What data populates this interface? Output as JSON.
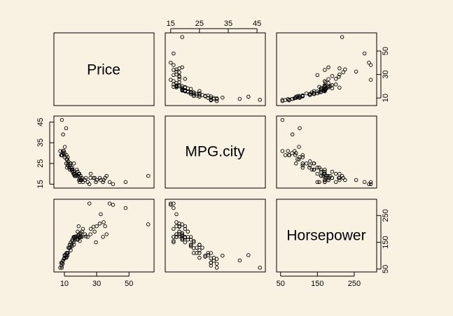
{
  "chart_data": {
    "type": "scatter-matrix",
    "variables": [
      "Price",
      "MPG.city",
      "Horsepower"
    ],
    "axes": {
      "Price": {
        "ticks": [
          10,
          30,
          50
        ],
        "range": [
          6,
          63
        ]
      },
      "MPG.city": {
        "ticks": [
          15,
          25,
          35,
          45
        ],
        "range": [
          14.5,
          46.5
        ]
      },
      "Horsepower": {
        "ticks": [
          50,
          150,
          250
        ],
        "range": [
          50,
          300
        ]
      }
    },
    "grid": false,
    "legend": "none",
    "observations": [
      [
        7.4,
        31,
        55
      ],
      [
        8.0,
        29,
        73
      ],
      [
        8.3,
        29,
        63
      ],
      [
        8.4,
        46,
        55
      ],
      [
        8.6,
        29,
        74
      ],
      [
        9.0,
        31,
        70
      ],
      [
        9.1,
        30,
        81
      ],
      [
        9.2,
        39,
        82
      ],
      [
        10.0,
        30,
        92
      ],
      [
        10.0,
        29,
        90
      ],
      [
        10.1,
        28,
        102
      ],
      [
        10.3,
        33,
        100
      ],
      [
        11.1,
        25,
        92
      ],
      [
        11.1,
        42,
        102
      ],
      [
        11.3,
        29,
        110
      ],
      [
        11.6,
        23,
        110
      ],
      [
        11.8,
        27,
        100
      ],
      [
        12.1,
        28,
        110
      ],
      [
        12.2,
        25,
        110
      ],
      [
        12.5,
        26,
        130
      ],
      [
        13.3,
        22,
        141
      ],
      [
        13.4,
        25,
        140
      ],
      [
        13.5,
        24,
        130
      ],
      [
        13.9,
        25,
        120
      ],
      [
        14.0,
        23,
        150
      ],
      [
        14.4,
        22,
        140
      ],
      [
        14.9,
        23,
        155
      ],
      [
        15.1,
        22,
        160
      ],
      [
        15.6,
        20,
        150
      ],
      [
        15.7,
        21,
        170
      ],
      [
        15.9,
        25,
        141
      ],
      [
        16.3,
        19,
        165
      ],
      [
        16.5,
        20,
        170
      ],
      [
        16.6,
        19,
        160
      ],
      [
        17.5,
        19,
        160
      ],
      [
        17.7,
        22,
        170
      ],
      [
        18.2,
        21,
        190
      ],
      [
        18.4,
        19,
        160
      ],
      [
        18.5,
        19,
        175
      ],
      [
        18.8,
        20,
        210
      ],
      [
        19.0,
        17,
        180
      ],
      [
        19.5,
        16,
        155
      ],
      [
        19.7,
        17,
        170
      ],
      [
        19.9,
        18,
        180
      ],
      [
        20.0,
        19,
        185
      ],
      [
        20.2,
        17,
        170
      ],
      [
        20.8,
        17,
        170
      ],
      [
        20.9,
        18,
        190
      ],
      [
        21.5,
        16,
        200
      ],
      [
        22.7,
        17,
        180
      ],
      [
        23.3,
        18,
        172
      ],
      [
        24.4,
        16,
        170
      ],
      [
        25.5,
        15,
        295
      ],
      [
        26.1,
        18,
        180
      ],
      [
        26.3,
        20,
        200
      ],
      [
        28.0,
        18,
        208
      ],
      [
        28.7,
        18,
        190
      ],
      [
        29.5,
        16,
        150
      ],
      [
        30.0,
        17,
        210
      ],
      [
        31.9,
        18,
        220
      ],
      [
        32.5,
        17,
        255
      ],
      [
        33.9,
        16,
        170
      ],
      [
        34.3,
        17,
        225
      ],
      [
        35.2,
        18,
        210
      ],
      [
        36.1,
        19,
        180
      ],
      [
        38.0,
        16,
        295
      ],
      [
        40.1,
        15,
        290
      ],
      [
        47.9,
        16,
        278
      ],
      [
        61.9,
        19,
        217
      ],
      [
        12.0,
        24,
        110
      ],
      [
        13.0,
        23,
        128
      ],
      [
        14.7,
        22,
        135
      ],
      [
        16.0,
        20,
        168
      ],
      [
        17.0,
        19,
        172
      ],
      [
        19.3,
        20,
        168
      ],
      [
        11.4,
        27,
        96
      ],
      [
        9.7,
        31,
        88
      ],
      [
        15.0,
        21,
        160
      ]
    ]
  }
}
